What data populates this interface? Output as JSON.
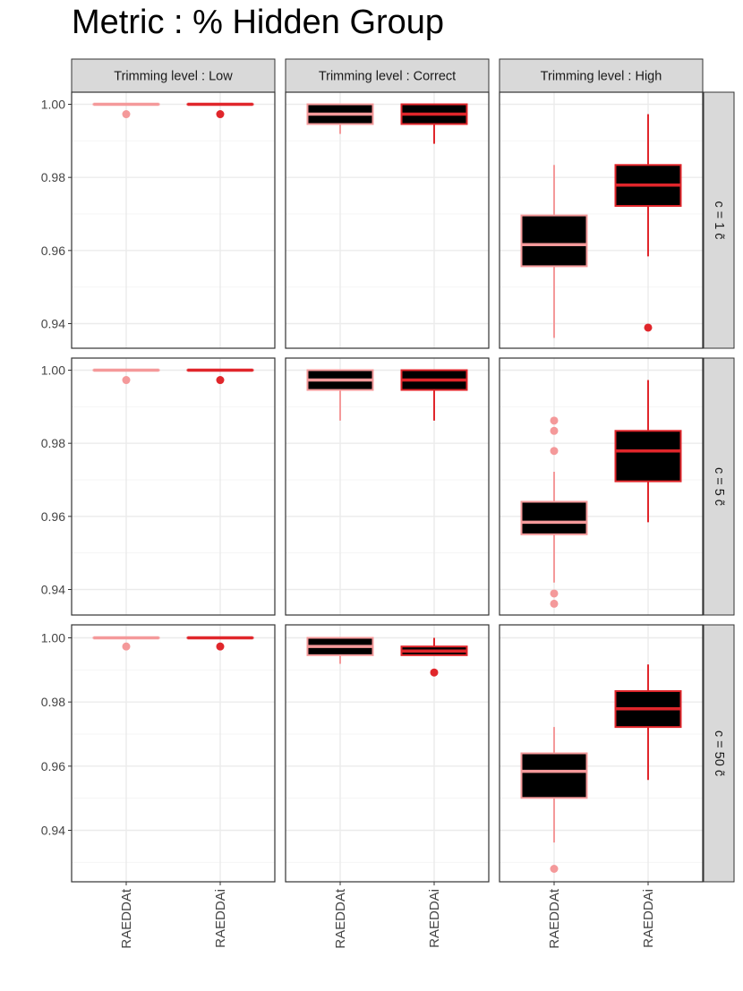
{
  "title": "Metric :  % Hidden Group",
  "colors": {
    "RAEDDAt": "#F4999A",
    "RAEDDAi": "#E0262B",
    "box_fill": "#000000",
    "strip_fill": "#d9d9d9",
    "grid_major": "#ebebeb",
    "grid_minor": "#f4f4f4",
    "panel_border": "#333333"
  },
  "chart_data": {
    "type": "box",
    "columns": [
      "Trimming level :  Low",
      "Trimming level :  Correct",
      "Trimming level :  High"
    ],
    "rows": [
      "c = 1 c̃",
      "c = 5 c̃",
      "c = 50 c̃"
    ],
    "categories": [
      "RAEDDAt",
      "RAEDDAi"
    ],
    "ylim": [
      0.925,
      1.002
    ],
    "yticks": [
      0.94,
      0.96,
      0.98,
      1.0
    ],
    "ytick_labels": [
      "0.94",
      "0.96",
      "0.98",
      "1.00"
    ],
    "grid": true,
    "panels": [
      {
        "row": 0,
        "col": 0,
        "boxes": [
          {
            "cat": "RAEDDAt",
            "q1": 1.0,
            "median": 1.0,
            "q3": 1.0,
            "wlo": 1.0,
            "whi": 1.0,
            "outliers": [
              0.9973
            ]
          },
          {
            "cat": "RAEDDAi",
            "q1": 1.0,
            "median": 1.0,
            "q3": 1.0,
            "wlo": 1.0,
            "whi": 1.0,
            "outliers": [
              0.9973
            ]
          }
        ]
      },
      {
        "row": 0,
        "col": 1,
        "boxes": [
          {
            "cat": "RAEDDAt",
            "q1": 0.9946,
            "median": 0.9973,
            "q3": 1.0,
            "wlo": 0.9919,
            "whi": 1.0,
            "outliers": []
          },
          {
            "cat": "RAEDDAi",
            "q1": 0.9946,
            "median": 0.9973,
            "q3": 1.0,
            "wlo": 0.9892,
            "whi": 1.0,
            "outliers": []
          }
        ]
      },
      {
        "row": 0,
        "col": 2,
        "boxes": [
          {
            "cat": "RAEDDAt",
            "q1": 0.9557,
            "median": 0.9616,
            "q3": 0.9696,
            "wlo": 0.9361,
            "whi": 0.9834,
            "outliers": []
          },
          {
            "cat": "RAEDDAi",
            "q1": 0.9722,
            "median": 0.9779,
            "q3": 0.9834,
            "wlo": 0.9584,
            "whi": 0.9973,
            "outliers": [
              0.9389
            ]
          }
        ]
      },
      {
        "row": 1,
        "col": 0,
        "boxes": [
          {
            "cat": "RAEDDAt",
            "q1": 1.0,
            "median": 1.0,
            "q3": 1.0,
            "wlo": 1.0,
            "whi": 1.0,
            "outliers": [
              0.9973
            ]
          },
          {
            "cat": "RAEDDAi",
            "q1": 1.0,
            "median": 1.0,
            "q3": 1.0,
            "wlo": 1.0,
            "whi": 1.0,
            "outliers": [
              0.9973
            ]
          }
        ]
      },
      {
        "row": 1,
        "col": 1,
        "boxes": [
          {
            "cat": "RAEDDAt",
            "q1": 0.9946,
            "median": 0.9973,
            "q3": 1.0,
            "wlo": 0.9862,
            "whi": 1.0,
            "outliers": []
          },
          {
            "cat": "RAEDDAi",
            "q1": 0.9946,
            "median": 0.9973,
            "q3": 1.0,
            "wlo": 0.9862,
            "whi": 1.0,
            "outliers": []
          }
        ]
      },
      {
        "row": 1,
        "col": 2,
        "boxes": [
          {
            "cat": "RAEDDAt",
            "q1": 0.9551,
            "median": 0.9584,
            "q3": 0.964,
            "wlo": 0.9419,
            "whi": 0.9722,
            "outliers": [
              0.9862,
              0.9834,
              0.9779,
              0.9389,
              0.9361
            ]
          },
          {
            "cat": "RAEDDAi",
            "q1": 0.9696,
            "median": 0.9779,
            "q3": 0.9834,
            "wlo": 0.9584,
            "whi": 0.9973,
            "outliers": []
          }
        ]
      },
      {
        "row": 2,
        "col": 0,
        "boxes": [
          {
            "cat": "RAEDDAt",
            "q1": 1.0,
            "median": 1.0,
            "q3": 1.0,
            "wlo": 1.0,
            "whi": 1.0,
            "outliers": [
              0.9973
            ]
          },
          {
            "cat": "RAEDDAi",
            "q1": 1.0,
            "median": 1.0,
            "q3": 1.0,
            "wlo": 1.0,
            "whi": 1.0,
            "outliers": [
              0.9973
            ]
          }
        ]
      },
      {
        "row": 2,
        "col": 1,
        "boxes": [
          {
            "cat": "RAEDDAt",
            "q1": 0.9946,
            "median": 0.9973,
            "q3": 1.0,
            "wlo": 0.9919,
            "whi": 1.0,
            "outliers": []
          },
          {
            "cat": "RAEDDAi",
            "q1": 0.9946,
            "median": 0.9959,
            "q3": 0.9973,
            "wlo": 0.9946,
            "whi": 1.0,
            "outliers": [
              0.9892
            ]
          }
        ]
      },
      {
        "row": 2,
        "col": 2,
        "boxes": [
          {
            "cat": "RAEDDAt",
            "q1": 0.9501,
            "median": 0.9584,
            "q3": 0.964,
            "wlo": 0.9362,
            "whi": 0.9722,
            "outliers": [
              0.928
            ]
          },
          {
            "cat": "RAEDDAi",
            "q1": 0.9722,
            "median": 0.9779,
            "q3": 0.9834,
            "wlo": 0.9557,
            "whi": 0.9917,
            "outliers": []
          }
        ]
      }
    ]
  }
}
